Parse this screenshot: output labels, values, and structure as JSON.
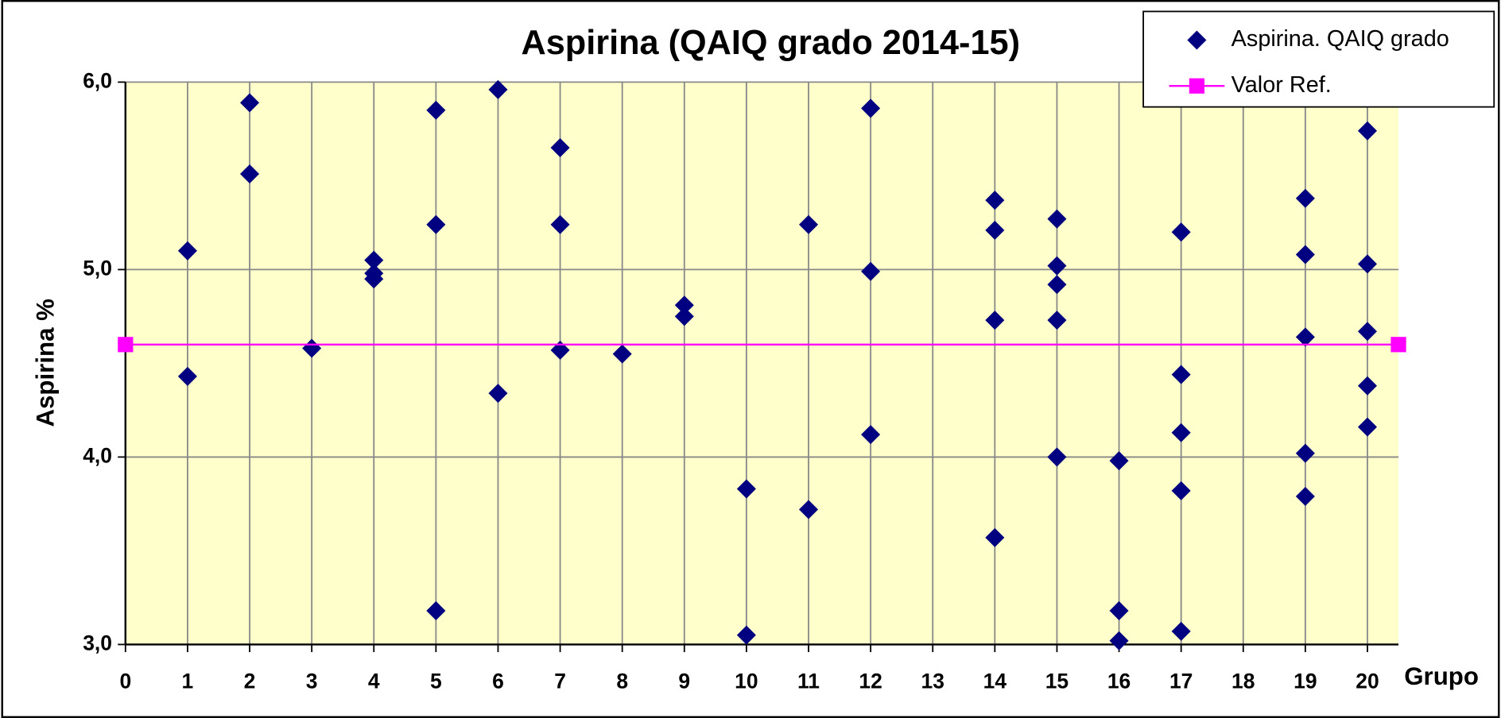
{
  "chart_data": {
    "type": "scatter",
    "title": "Aspirina (QAIQ grado 2014-15)",
    "x_label": "Grupo",
    "y_label": "Aspirina %",
    "xlim": [
      0,
      20.5
    ],
    "ylim": [
      3,
      6
    ],
    "xticks": [
      0,
      1,
      2,
      3,
      4,
      5,
      6,
      7,
      8,
      9,
      10,
      11,
      12,
      13,
      14,
      15,
      16,
      17,
      18,
      19,
      20
    ],
    "yticks": [
      {
        "value": 3,
        "label": "3,0"
      },
      {
        "value": 4,
        "label": "4,0"
      },
      {
        "value": 5,
        "label": "5,0"
      },
      {
        "value": 6,
        "label": "6,0"
      }
    ],
    "grid": true,
    "legend": "top-right",
    "series": [
      {
        "name": "Aspirina. QAIQ grado",
        "color": "#000080",
        "marker": "diamond",
        "x": [
          1,
          1,
          2,
          2,
          3,
          4,
          4,
          4,
          5,
          5,
          5,
          6,
          6,
          7,
          7,
          7,
          8,
          9,
          9,
          10,
          10,
          11,
          11,
          12,
          12,
          12,
          14,
          14,
          14,
          14,
          15,
          15,
          15,
          15,
          15,
          16,
          16,
          16,
          17,
          17,
          17,
          17,
          17,
          19,
          19,
          19,
          19,
          19,
          20,
          20,
          20,
          20,
          20
        ],
        "values": [
          5.1,
          4.43,
          5.89,
          5.51,
          4.58,
          5.05,
          4.98,
          4.95,
          5.85,
          5.24,
          3.18,
          5.96,
          4.34,
          5.65,
          5.24,
          4.57,
          4.55,
          4.81,
          4.75,
          3.83,
          3.05,
          5.24,
          3.72,
          5.86,
          4.99,
          4.12,
          5.37,
          5.21,
          4.73,
          3.57,
          5.27,
          5.02,
          4.92,
          4.73,
          4.0,
          3.98,
          3.18,
          3.02,
          5.2,
          4.44,
          4.13,
          3.82,
          3.07,
          5.38,
          5.08,
          4.64,
          4.02,
          3.79,
          5.74,
          5.03,
          4.67,
          4.38,
          4.16
        ]
      },
      {
        "name": "Valor Ref.",
        "color": "#ff00ff",
        "marker": "square",
        "line": true,
        "x": [
          0,
          20.5
        ],
        "values": [
          4.6,
          4.6
        ]
      }
    ]
  }
}
